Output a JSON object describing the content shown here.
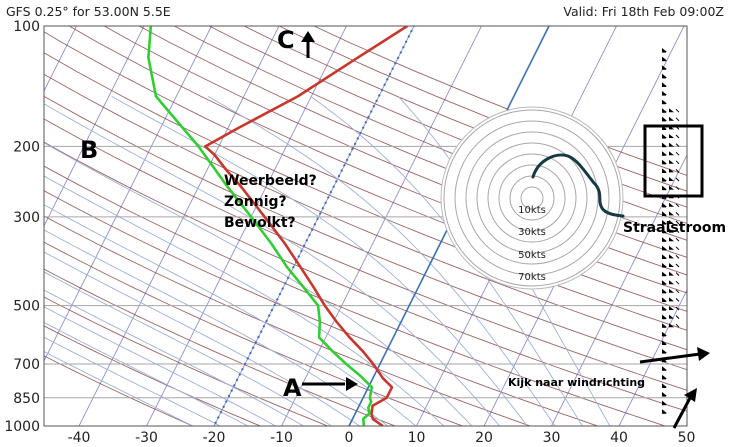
{
  "header": {
    "model_info": "GFS 0.25° for 53.00N 5.5E",
    "valid": "Valid: Fri 18th Feb 09:00Z"
  },
  "chart_data": {
    "type": "skew-t",
    "x_ticks": [
      -40,
      -30,
      -20,
      -10,
      0,
      10,
      20,
      30,
      40,
      50
    ],
    "y_ticks": [
      100,
      200,
      300,
      500,
      700,
      850,
      1000
    ],
    "xlim": [
      -45,
      50
    ],
    "ylim": [
      1000,
      100
    ],
    "series": [
      {
        "name": "",
        "color": "#c8372d",
        "role": "temperature",
        "values": [
          [
            1000,
            5
          ],
          [
            960,
            3
          ],
          [
            930,
            2.4
          ],
          [
            890,
            2
          ],
          [
            850,
            3.5
          ],
          [
            800,
            3.5
          ],
          [
            760,
            1.5
          ],
          [
            700,
            -1
          ],
          [
            650,
            -3.5
          ],
          [
            600,
            -6.5
          ],
          [
            550,
            -9.5
          ],
          [
            500,
            -12.5
          ],
          [
            450,
            -15.5
          ],
          [
            400,
            -19
          ],
          [
            350,
            -23
          ],
          [
            300,
            -28
          ],
          [
            250,
            -34
          ],
          [
            230,
            -37
          ],
          [
            210,
            -40
          ],
          [
            200,
            -42
          ],
          [
            180,
            -38.5
          ],
          [
            150,
            -32
          ],
          [
            120,
            -26
          ],
          [
            100,
            -21
          ]
        ]
      },
      {
        "name": "",
        "color": "#33cc33",
        "role": "dewpoint",
        "values": [
          [
            1000,
            2.2
          ],
          [
            960,
            1.6
          ],
          [
            930,
            2.1
          ],
          [
            900,
            1.5
          ],
          [
            870,
            1.5
          ],
          [
            850,
            1
          ],
          [
            800,
            0.5
          ],
          [
            750,
            -2
          ],
          [
            700,
            -5
          ],
          [
            650,
            -8
          ],
          [
            600,
            -11
          ],
          [
            550,
            -12
          ],
          [
            500,
            -13.5
          ],
          [
            450,
            -17
          ],
          [
            400,
            -21
          ],
          [
            350,
            -25
          ],
          [
            300,
            -30
          ],
          [
            250,
            -36
          ],
          [
            200,
            -43
          ],
          [
            150,
            -53
          ],
          [
            120,
            -57
          ],
          [
            100,
            -59
          ]
        ]
      }
    ],
    "hodograph": {
      "ring_labels": [
        "10kts",
        "30kts",
        "50kts",
        "70kts"
      ]
    }
  },
  "annotations": {
    "label_a": "A",
    "label_b": "B",
    "label_c": "C",
    "weather_lines": [
      "Weerbeeld?",
      "Zonnig?",
      "Bewolkt?"
    ],
    "jetstream": "Straalstroom",
    "wind_direction": "Kijk naar windrichting"
  },
  "colors": {
    "temperature": "#c8372d",
    "dewpoint": "#33cc33",
    "isotherm": "#8e8ec8",
    "dry_adiabat": "#8a4a4a",
    "moist_adiabat": "#9fb0d8",
    "freezing_line": "#3b6fb5",
    "mixing_ratio": "#3b6fb5",
    "hodograph_trace": "#163a44",
    "annotation": "#000000"
  }
}
